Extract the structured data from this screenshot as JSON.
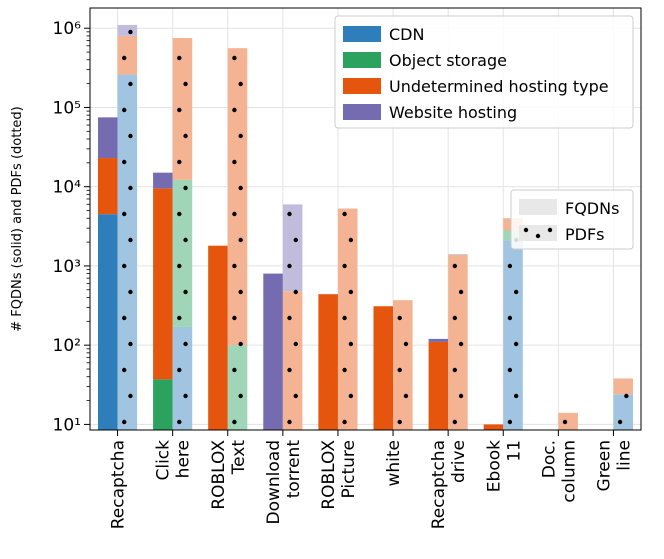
{
  "chart_data": {
    "type": "bar",
    "ylabel": "# FQDNs (solid) and PDFs (dotted)",
    "yscale": "log",
    "ylim": [
      8.5,
      1800000
    ],
    "yticks": [
      {
        "value": 10,
        "label": "10¹"
      },
      {
        "value": 100,
        "label": "10²"
      },
      {
        "value": 1000,
        "label": "10³"
      },
      {
        "value": 10000,
        "label": "10⁴"
      },
      {
        "value": 100000,
        "label": "10⁵"
      },
      {
        "value": 1000000,
        "label": "10⁶"
      }
    ],
    "categories": [
      {
        "lines": [
          "Recaptcha"
        ]
      },
      {
        "lines": [
          "Click",
          "here"
        ]
      },
      {
        "lines": [
          "ROBLOX",
          "Text"
        ]
      },
      {
        "lines": [
          "Download",
          "torrent"
        ]
      },
      {
        "lines": [
          "ROBLOX",
          "Picture"
        ]
      },
      {
        "lines": [
          "white"
        ]
      },
      {
        "lines": [
          "Recaptcha",
          "drive"
        ]
      },
      {
        "lines": [
          "Ebook",
          "11"
        ]
      },
      {
        "lines": [
          "Doc.",
          "column"
        ]
      },
      {
        "lines": [
          "Green",
          "line"
        ]
      }
    ],
    "series": [
      {
        "name": "CDN",
        "color": "#2f7ebc"
      },
      {
        "name": "Object storage",
        "color": "#2ca25f"
      },
      {
        "name": "Undetermined hosting type",
        "color": "#e6550d"
      },
      {
        "name": "Website hosting",
        "color": "#756bb1"
      }
    ],
    "fqdns": [
      [
        4500,
        0,
        18500,
        52000
      ],
      [
        0,
        37,
        9500,
        5500
      ],
      [
        0,
        0,
        1800,
        0
      ],
      [
        0,
        0,
        0,
        800
      ],
      [
        0,
        0,
        440,
        0
      ],
      [
        0,
        0,
        310,
        0
      ],
      [
        0,
        0,
        110,
        10
      ],
      [
        0,
        0,
        10,
        0
      ],
      [
        0,
        0,
        0,
        0
      ],
      [
        0,
        0,
        0,
        0
      ]
    ],
    "pdfs": [
      [
        260000,
        0,
        540000,
        300000
      ],
      [
        170,
        12000,
        740000,
        0
      ],
      [
        0,
        100,
        560000,
        0
      ],
      [
        0,
        0,
        480,
        5500
      ],
      [
        0,
        0,
        5300,
        0
      ],
      [
        0,
        0,
        370,
        0
      ],
      [
        0,
        0,
        1380,
        30
      ],
      [
        2100,
        700,
        1200,
        0
      ],
      [
        0,
        0,
        14,
        0
      ],
      [
        24,
        0,
        14,
        0
      ]
    ],
    "legend_series_position": "top-right",
    "legend_style": {
      "position": "right",
      "entries": [
        "FQDNs",
        "PDFs"
      ]
    },
    "grid": true
  }
}
